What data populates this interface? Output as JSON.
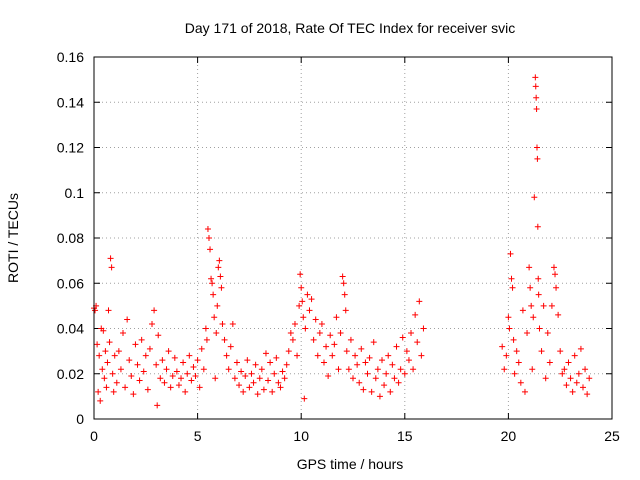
{
  "chart_data": {
    "type": "scatter",
    "title": "Day 171 of 2018, Rate Of TEC Index for receiver svic",
    "xlabel": "GPS time / hours",
    "ylabel": "ROTI / TECUs",
    "xlim": [
      0,
      25
    ],
    "ylim": [
      0,
      0.16
    ],
    "xticks": [
      0,
      5,
      10,
      15,
      20,
      25
    ],
    "xtick_labels": [
      "0",
      "5",
      "10",
      "15",
      "20",
      "25"
    ],
    "yticks": [
      0,
      0.02,
      0.04,
      0.06,
      0.08,
      0.1,
      0.12,
      0.14,
      0.16
    ],
    "ytick_labels": [
      "0",
      "0.02",
      "0.04",
      "0.06",
      "0.08",
      "0.1",
      "0.12",
      "0.14",
      "0.16"
    ],
    "grid": true,
    "marker": "+",
    "marker_color": "#ff0000",
    "series": [
      {
        "name": "ROTI",
        "points": [
          [
            0.0,
            0.049
          ],
          [
            0.05,
            0.048
          ],
          [
            0.1,
            0.05
          ],
          [
            0.15,
            0.033
          ],
          [
            0.2,
            0.012
          ],
          [
            0.25,
            0.028
          ],
          [
            0.3,
            0.008
          ],
          [
            0.35,
            0.04
          ],
          [
            0.4,
            0.022
          ],
          [
            0.45,
            0.039
          ],
          [
            0.5,
            0.018
          ],
          [
            0.55,
            0.03
          ],
          [
            0.6,
            0.014
          ],
          [
            0.65,
            0.025
          ],
          [
            0.7,
            0.048
          ],
          [
            0.75,
            0.034
          ],
          [
            0.8,
            0.071
          ],
          [
            0.85,
            0.067
          ],
          [
            0.9,
            0.02
          ],
          [
            0.95,
            0.012
          ],
          [
            1.0,
            0.028
          ],
          [
            1.1,
            0.016
          ],
          [
            1.2,
            0.03
          ],
          [
            1.3,
            0.022
          ],
          [
            1.4,
            0.038
          ],
          [
            1.5,
            0.014
          ],
          [
            1.6,
            0.044
          ],
          [
            1.7,
            0.026
          ],
          [
            1.8,
            0.019
          ],
          [
            1.9,
            0.011
          ],
          [
            2.0,
            0.033
          ],
          [
            2.1,
            0.024
          ],
          [
            2.2,
            0.017
          ],
          [
            2.3,
            0.035
          ],
          [
            2.4,
            0.021
          ],
          [
            2.5,
            0.028
          ],
          [
            2.6,
            0.013
          ],
          [
            2.7,
            0.031
          ],
          [
            2.8,
            0.042
          ],
          [
            2.9,
            0.048
          ],
          [
            3.0,
            0.024
          ],
          [
            3.05,
            0.006
          ],
          [
            3.1,
            0.037
          ],
          [
            3.2,
            0.018
          ],
          [
            3.3,
            0.026
          ],
          [
            3.4,
            0.016
          ],
          [
            3.5,
            0.022
          ],
          [
            3.6,
            0.03
          ],
          [
            3.7,
            0.014
          ],
          [
            3.8,
            0.019
          ],
          [
            3.9,
            0.027
          ],
          [
            4.0,
            0.021
          ],
          [
            4.1,
            0.015
          ],
          [
            4.2,
            0.018
          ],
          [
            4.3,
            0.025
          ],
          [
            4.4,
            0.012
          ],
          [
            4.5,
            0.02
          ],
          [
            4.6,
            0.028
          ],
          [
            4.7,
            0.017
          ],
          [
            4.8,
            0.023
          ],
          [
            4.9,
            0.019
          ],
          [
            5.0,
            0.026
          ],
          [
            5.1,
            0.014
          ],
          [
            5.2,
            0.031
          ],
          [
            5.3,
            0.022
          ],
          [
            5.4,
            0.04
          ],
          [
            5.45,
            0.035
          ],
          [
            5.5,
            0.084
          ],
          [
            5.55,
            0.08
          ],
          [
            5.6,
            0.075
          ],
          [
            5.65,
            0.062
          ],
          [
            5.7,
            0.06
          ],
          [
            5.75,
            0.055
          ],
          [
            5.8,
            0.045
          ],
          [
            5.85,
            0.018
          ],
          [
            5.9,
            0.038
          ],
          [
            5.95,
            0.05
          ],
          [
            6.0,
            0.067
          ],
          [
            6.05,
            0.07
          ],
          [
            6.1,
            0.063
          ],
          [
            6.15,
            0.058
          ],
          [
            6.2,
            0.042
          ],
          [
            6.3,
            0.035
          ],
          [
            6.4,
            0.028
          ],
          [
            6.5,
            0.022
          ],
          [
            6.6,
            0.032
          ],
          [
            6.7,
            0.042
          ],
          [
            6.8,
            0.018
          ],
          [
            6.9,
            0.025
          ],
          [
            7.0,
            0.015
          ],
          [
            7.1,
            0.021
          ],
          [
            7.2,
            0.012
          ],
          [
            7.3,
            0.019
          ],
          [
            7.4,
            0.026
          ],
          [
            7.5,
            0.014
          ],
          [
            7.6,
            0.02
          ],
          [
            7.7,
            0.016
          ],
          [
            7.8,
            0.024
          ],
          [
            7.9,
            0.011
          ],
          [
            8.0,
            0.018
          ],
          [
            8.1,
            0.022
          ],
          [
            8.2,
            0.013
          ],
          [
            8.3,
            0.029
          ],
          [
            8.4,
            0.017
          ],
          [
            8.5,
            0.025
          ],
          [
            8.6,
            0.012
          ],
          [
            8.7,
            0.02
          ],
          [
            8.8,
            0.027
          ],
          [
            8.9,
            0.016
          ],
          [
            9.0,
            0.014
          ],
          [
            9.1,
            0.021
          ],
          [
            9.2,
            0.018
          ],
          [
            9.3,
            0.024
          ],
          [
            9.4,
            0.03
          ],
          [
            9.5,
            0.038
          ],
          [
            9.6,
            0.035
          ],
          [
            9.7,
            0.042
          ],
          [
            9.8,
            0.028
          ],
          [
            9.9,
            0.05
          ],
          [
            9.95,
            0.064
          ],
          [
            10.0,
            0.058
          ],
          [
            10.05,
            0.052
          ],
          [
            10.1,
            0.045
          ],
          [
            10.15,
            0.009
          ],
          [
            10.2,
            0.04
          ],
          [
            10.3,
            0.055
          ],
          [
            10.4,
            0.048
          ],
          [
            10.5,
            0.053
          ],
          [
            10.6,
            0.035
          ],
          [
            10.7,
            0.044
          ],
          [
            10.8,
            0.028
          ],
          [
            10.9,
            0.038
          ],
          [
            11.0,
            0.042
          ],
          [
            11.1,
            0.025
          ],
          [
            11.2,
            0.032
          ],
          [
            11.3,
            0.019
          ],
          [
            11.4,
            0.037
          ],
          [
            11.5,
            0.028
          ],
          [
            11.6,
            0.033
          ],
          [
            11.7,
            0.045
          ],
          [
            11.8,
            0.022
          ],
          [
            11.9,
            0.038
          ],
          [
            12.0,
            0.063
          ],
          [
            12.05,
            0.06
          ],
          [
            12.1,
            0.055
          ],
          [
            12.15,
            0.048
          ],
          [
            12.2,
            0.03
          ],
          [
            12.3,
            0.022
          ],
          [
            12.4,
            0.035
          ],
          [
            12.5,
            0.018
          ],
          [
            12.6,
            0.028
          ],
          [
            12.7,
            0.024
          ],
          [
            12.8,
            0.016
          ],
          [
            12.9,
            0.031
          ],
          [
            13.0,
            0.013
          ],
          [
            13.1,
            0.025
          ],
          [
            13.2,
            0.02
          ],
          [
            13.3,
            0.027
          ],
          [
            13.4,
            0.012
          ],
          [
            13.5,
            0.034
          ],
          [
            13.6,
            0.018
          ],
          [
            13.7,
            0.022
          ],
          [
            13.8,
            0.01
          ],
          [
            13.9,
            0.026
          ],
          [
            14.0,
            0.015
          ],
          [
            14.1,
            0.02
          ],
          [
            14.2,
            0.028
          ],
          [
            14.3,
            0.012
          ],
          [
            14.4,
            0.024
          ],
          [
            14.5,
            0.018
          ],
          [
            14.6,
            0.032
          ],
          [
            14.7,
            0.016
          ],
          [
            14.8,
            0.022
          ],
          [
            14.9,
            0.036
          ],
          [
            15.0,
            0.02
          ],
          [
            15.1,
            0.03
          ],
          [
            15.2,
            0.026
          ],
          [
            15.3,
            0.038
          ],
          [
            15.4,
            0.022
          ],
          [
            15.5,
            0.046
          ],
          [
            15.6,
            0.034
          ],
          [
            15.7,
            0.052
          ],
          [
            15.8,
            0.028
          ],
          [
            15.9,
            0.04
          ],
          [
            19.7,
            0.032
          ],
          [
            19.8,
            0.022
          ],
          [
            19.9,
            0.028
          ],
          [
            20.0,
            0.045
          ],
          [
            20.05,
            0.04
          ],
          [
            20.1,
            0.073
          ],
          [
            20.15,
            0.062
          ],
          [
            20.2,
            0.058
          ],
          [
            20.25,
            0.035
          ],
          [
            20.3,
            0.02
          ],
          [
            20.4,
            0.03
          ],
          [
            20.5,
            0.025
          ],
          [
            20.6,
            0.016
          ],
          [
            20.7,
            0.048
          ],
          [
            20.8,
            0.012
          ],
          [
            20.9,
            0.038
          ],
          [
            21.0,
            0.067
          ],
          [
            21.05,
            0.058
          ],
          [
            21.1,
            0.05
          ],
          [
            21.15,
            0.022
          ],
          [
            21.2,
            0.045
          ],
          [
            21.25,
            0.098
          ],
          [
            21.3,
            0.151
          ],
          [
            21.32,
            0.147
          ],
          [
            21.34,
            0.142
          ],
          [
            21.36,
            0.137
          ],
          [
            21.38,
            0.12
          ],
          [
            21.4,
            0.115
          ],
          [
            21.42,
            0.085
          ],
          [
            21.44,
            0.062
          ],
          [
            21.46,
            0.055
          ],
          [
            21.5,
            0.04
          ],
          [
            21.6,
            0.03
          ],
          [
            21.7,
            0.05
          ],
          [
            21.8,
            0.018
          ],
          [
            21.9,
            0.038
          ],
          [
            22.0,
            0.025
          ],
          [
            22.1,
            0.05
          ],
          [
            22.2,
            0.067
          ],
          [
            22.25,
            0.064
          ],
          [
            22.3,
            0.058
          ],
          [
            22.4,
            0.046
          ],
          [
            22.5,
            0.03
          ],
          [
            22.6,
            0.02
          ],
          [
            22.7,
            0.022
          ],
          [
            22.8,
            0.015
          ],
          [
            22.9,
            0.025
          ],
          [
            23.0,
            0.018
          ],
          [
            23.1,
            0.012
          ],
          [
            23.2,
            0.028
          ],
          [
            23.3,
            0.016
          ],
          [
            23.4,
            0.02
          ],
          [
            23.5,
            0.031
          ],
          [
            23.6,
            0.014
          ],
          [
            23.7,
            0.022
          ],
          [
            23.8,
            0.011
          ],
          [
            23.9,
            0.018
          ]
        ]
      }
    ]
  }
}
